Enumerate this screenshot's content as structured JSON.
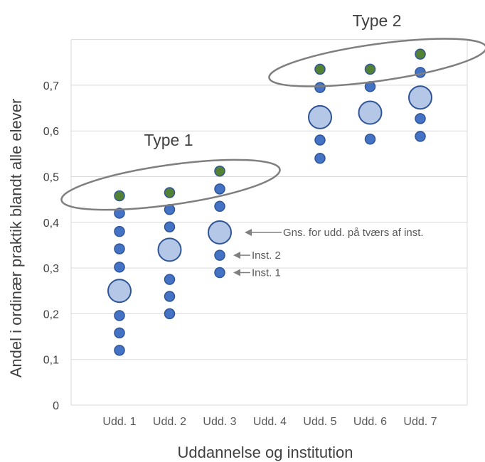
{
  "chart_data": {
    "type": "scatter",
    "xlabel": "Uddannelse og institution",
    "ylabel": "Andel i ordinær praktik blandt alle elever",
    "ylim": [
      0,
      0.8
    ],
    "yticks": [
      "0",
      "0,1",
      "0,2",
      "0,3",
      "0,4",
      "0,5",
      "0,6",
      "0,7"
    ],
    "categories": [
      "Udd. 1",
      "Udd. 2",
      "Udd. 3",
      "Udd. 4",
      "Udd. 5",
      "Udd. 6",
      "Udd. 7"
    ],
    "grid": true,
    "colors": {
      "institution": "#4472c4",
      "institution_edge": "#2f5597",
      "average": "#b4c7e7",
      "highlight": "#548235",
      "annotation": "#808080",
      "ellipse": "#7f7f7f",
      "grid": "#d9d9d9"
    },
    "series": [
      {
        "role": "institution",
        "points": [
          {
            "category": "Udd. 1",
            "values": [
              0.12,
              0.158,
              0.196,
              0.302,
              0.342,
              0.38,
              0.42
            ]
          },
          {
            "category": "Udd. 2",
            "values": [
              0.2,
              0.238,
              0.275,
              0.39,
              0.428
            ]
          },
          {
            "category": "Udd. 3",
            "values": [
              0.29,
              0.328,
              0.435,
              0.473
            ]
          },
          {
            "category": "Udd. 5",
            "values": [
              0.54,
              0.58,
              0.695
            ]
          },
          {
            "category": "Udd. 6",
            "values": [
              0.582,
              0.697
            ]
          },
          {
            "category": "Udd. 7",
            "values": [
              0.588,
              0.627,
              0.728
            ]
          }
        ]
      },
      {
        "role": "highlight",
        "points": [
          {
            "category": "Udd. 1",
            "value": 0.458
          },
          {
            "category": "Udd. 2",
            "value": 0.465
          },
          {
            "category": "Udd. 3",
            "value": 0.512
          },
          {
            "category": "Udd. 5",
            "value": 0.735
          },
          {
            "category": "Udd. 6",
            "value": 0.735
          },
          {
            "category": "Udd. 7",
            "value": 0.768
          }
        ]
      },
      {
        "role": "average",
        "points": [
          {
            "category": "Udd. 1",
            "value": 0.25
          },
          {
            "category": "Udd. 2",
            "value": 0.34
          },
          {
            "category": "Udd. 3",
            "value": 0.378
          },
          {
            "category": "Udd. 5",
            "value": 0.63
          },
          {
            "category": "Udd. 6",
            "value": 0.64
          },
          {
            "category": "Udd. 7",
            "value": 0.673
          }
        ]
      }
    ],
    "annotations": [
      {
        "text": "Gns. for udd. på tværs af inst.",
        "category": "Udd. 3",
        "value": 0.378
      },
      {
        "text": "Inst. 2",
        "category": "Udd. 3",
        "value": 0.328
      },
      {
        "text": "Inst. 1",
        "category": "Udd. 3",
        "value": 0.29
      }
    ],
    "groups": [
      {
        "label": "Type 1",
        "categories": [
          "Udd. 1",
          "Udd. 2",
          "Udd. 3"
        ]
      },
      {
        "label": "Type 2",
        "categories": [
          "Udd. 5",
          "Udd. 6",
          "Udd. 7"
        ]
      }
    ]
  }
}
